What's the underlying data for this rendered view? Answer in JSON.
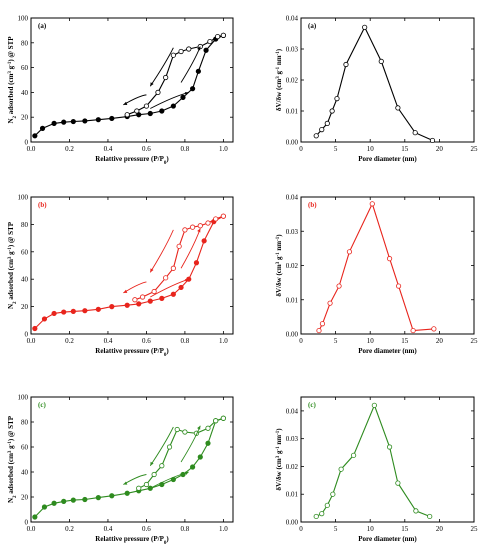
{
  "chart_data": [
    {
      "type": "line",
      "panel": "(a)",
      "kind": "isotherm",
      "color": "#000000",
      "xlabel": "Relattive pressure (P/P",
      "xlabel_sub": "0",
      "xlabel_end": ")",
      "ylabel": "N",
      "ylabel_sub": "2",
      "ylabel_mid": " adsorbed (cm",
      "ylabel_sup1": "3",
      "ylabel_mid2": " g",
      "ylabel_sup2": "-1",
      "ylabel_end": ") @ STP",
      "xlim": [
        0.0,
        1.05
      ],
      "ylim": [
        0,
        100
      ],
      "xticks": [
        "0.0",
        "0.2",
        "0.4",
        "0.6",
        "0.8",
        "1.0"
      ],
      "yticks": [
        "0",
        "20",
        "40",
        "60",
        "80",
        "100"
      ],
      "series": [
        {
          "marker": "filled",
          "x": [
            0.02,
            0.06,
            0.12,
            0.17,
            0.22,
            0.28,
            0.35,
            0.42,
            0.5,
            0.56,
            0.62,
            0.68,
            0.74,
            0.79,
            0.84,
            0.87,
            0.91,
            0.96,
            1.0
          ],
          "y": [
            5,
            11,
            15,
            16,
            16.5,
            17,
            18,
            19,
            20.5,
            22,
            23,
            25,
            29,
            36,
            43,
            57,
            74,
            83,
            86
          ]
        },
        {
          "marker": "open",
          "x": [
            1.0,
            0.97,
            0.93,
            0.88,
            0.82,
            0.78,
            0.74,
            0.7,
            0.66,
            0.6,
            0.55,
            0.5
          ],
          "y": [
            86,
            85,
            81,
            77,
            75,
            73,
            70,
            52,
            40,
            29,
            25,
            22
          ]
        }
      ],
      "arrows": 4
    },
    {
      "type": "line",
      "panel": "(a)",
      "kind": "psd",
      "color": "#000000",
      "xlabel": "Pore diameter (nm)",
      "ylabel": "δV/δw (cm",
      "ylabel_sup1": "3",
      "ylabel_mid": " g",
      "ylabel_sup2": "-1",
      "ylabel_mid2": " nm",
      "ylabel_sup3": "-1",
      "ylabel_end": ")",
      "xlim": [
        0,
        25
      ],
      "ylim": [
        0,
        0.04
      ],
      "xticks": [
        "0",
        "5",
        "10",
        "15",
        "20",
        "25"
      ],
      "yticks": [
        "0.00",
        "0.01",
        "0.02",
        "0.03",
        "0.04"
      ],
      "x": [
        2.2,
        3.0,
        3.8,
        4.5,
        5.2,
        6.5,
        9.2,
        11.6,
        14.0,
        16.5,
        19.0
      ],
      "y": [
        0.002,
        0.004,
        0.006,
        0.01,
        0.014,
        0.025,
        0.037,
        0.026,
        0.011,
        0.003,
        0.0005
      ]
    },
    {
      "type": "line",
      "panel": "(b)",
      "kind": "isotherm",
      "color": "#e8241c",
      "xlabel": "Relattive pressure (P/P",
      "xlabel_sub": "0",
      "xlabel_end": ")",
      "ylabel": "N",
      "ylabel_sub": "2",
      "ylabel_mid": " adsorbed (cm",
      "ylabel_sup1": "3",
      "ylabel_mid2": " g",
      "ylabel_sup2": "-1",
      "ylabel_end": ") @ STP",
      "xlim": [
        0.0,
        1.05
      ],
      "ylim": [
        0,
        100
      ],
      "xticks": [
        "0.0",
        "0.2",
        "0.4",
        "0.6",
        "0.8",
        "1.0"
      ],
      "yticks": [
        "0",
        "20",
        "40",
        "60",
        "80",
        "100"
      ],
      "series": [
        {
          "marker": "filled",
          "x": [
            0.02,
            0.07,
            0.12,
            0.17,
            0.22,
            0.28,
            0.35,
            0.42,
            0.5,
            0.56,
            0.62,
            0.68,
            0.74,
            0.78,
            0.82,
            0.86,
            0.9,
            0.95,
            1.0
          ],
          "y": [
            4,
            11,
            15,
            16,
            16.5,
            17,
            18,
            20,
            21,
            22,
            24,
            26,
            29,
            34,
            40,
            52,
            68,
            82,
            86
          ]
        },
        {
          "marker": "open",
          "x": [
            1.0,
            0.96,
            0.92,
            0.88,
            0.84,
            0.8,
            0.77,
            0.74,
            0.7,
            0.64,
            0.58,
            0.54
          ],
          "y": [
            86,
            84,
            81,
            79,
            78,
            76,
            64,
            48,
            41,
            31,
            27,
            25
          ]
        }
      ],
      "arrows": 4
    },
    {
      "type": "line",
      "panel": "(b)",
      "kind": "psd",
      "color": "#e8241c",
      "xlabel": "Pore diameter (nm)",
      "ylabel": "δV/δw (cm",
      "ylabel_sup1": "3",
      "ylabel_mid": " g",
      "ylabel_sup2": "-1",
      "ylabel_mid2": " nm",
      "ylabel_sup3": "-1",
      "ylabel_end": ")",
      "xlim": [
        0,
        25
      ],
      "ylim": [
        0,
        0.04
      ],
      "xticks": [
        "0",
        "5",
        "10",
        "15",
        "20",
        "25"
      ],
      "yticks": [
        "0.00",
        "0.01",
        "0.02",
        "0.03",
        "0.04"
      ],
      "x": [
        2.6,
        3.1,
        4.2,
        5.5,
        7.0,
        10.3,
        12.8,
        14.1,
        16.2,
        19.2
      ],
      "y": [
        0.001,
        0.003,
        0.009,
        0.014,
        0.024,
        0.038,
        0.022,
        0.014,
        0.001,
        0.0015
      ]
    },
    {
      "type": "line",
      "panel": "(c)",
      "kind": "isotherm",
      "color": "#2e8b1f",
      "xlabel": "Relattive pressure (P/P",
      "xlabel_sub": "0",
      "xlabel_end": ")",
      "ylabel": "N",
      "ylabel_sub": "2",
      "ylabel_mid": " adsorbed (cm",
      "ylabel_sup1": "3",
      "ylabel_mid2": " g",
      "ylabel_sup2": "-1",
      "ylabel_end": ") @ STP",
      "xlim": [
        0.0,
        1.05
      ],
      "ylim": [
        0,
        100
      ],
      "xticks": [
        "0.0",
        "0.2",
        "0.4",
        "0.6",
        "0.8",
        "1.0"
      ],
      "yticks": [
        "0",
        "20",
        "40",
        "60",
        "80",
        "100"
      ],
      "series": [
        {
          "marker": "filled",
          "x": [
            0.02,
            0.07,
            0.12,
            0.17,
            0.22,
            0.28,
            0.35,
            0.42,
            0.5,
            0.56,
            0.62,
            0.68,
            0.74,
            0.79,
            0.84,
            0.88,
            0.92,
            0.96,
            1.0
          ],
          "y": [
            4,
            12,
            15,
            16.5,
            17.5,
            18,
            19.5,
            21,
            23,
            25,
            27,
            30,
            34,
            38,
            44,
            52,
            63,
            81,
            83
          ]
        },
        {
          "marker": "open",
          "x": [
            1.0,
            0.96,
            0.92,
            0.86,
            0.8,
            0.76,
            0.72,
            0.68,
            0.64,
            0.6,
            0.56
          ],
          "y": [
            83,
            81,
            75,
            71,
            72,
            74,
            60,
            45,
            38,
            30,
            27
          ]
        }
      ],
      "arrows": 4
    },
    {
      "type": "line",
      "panel": "(c)",
      "kind": "psd",
      "color": "#2e8b1f",
      "xlabel": "Pore diameter (nm)",
      "ylabel": "δV/δw (cm",
      "ylabel_sup1": "3",
      "ylabel_mid": " g",
      "ylabel_sup2": "-1",
      "ylabel_mid2": " nm",
      "ylabel_sup3": "-1",
      "ylabel_end": ")",
      "xlim": [
        0,
        25
      ],
      "ylim": [
        0,
        0.045
      ],
      "xticks": [
        "0",
        "5",
        "10",
        "15",
        "20",
        "25"
      ],
      "yticks": [
        "0.00",
        "0.01",
        "0.02",
        "0.03",
        "0.04"
      ],
      "x": [
        2.2,
        3.0,
        3.8,
        4.6,
        5.8,
        7.6,
        10.6,
        12.8,
        14.0,
        16.6,
        18.6
      ],
      "y": [
        0.002,
        0.003,
        0.006,
        0.01,
        0.019,
        0.024,
        0.042,
        0.027,
        0.014,
        0.004,
        0.002
      ]
    }
  ]
}
